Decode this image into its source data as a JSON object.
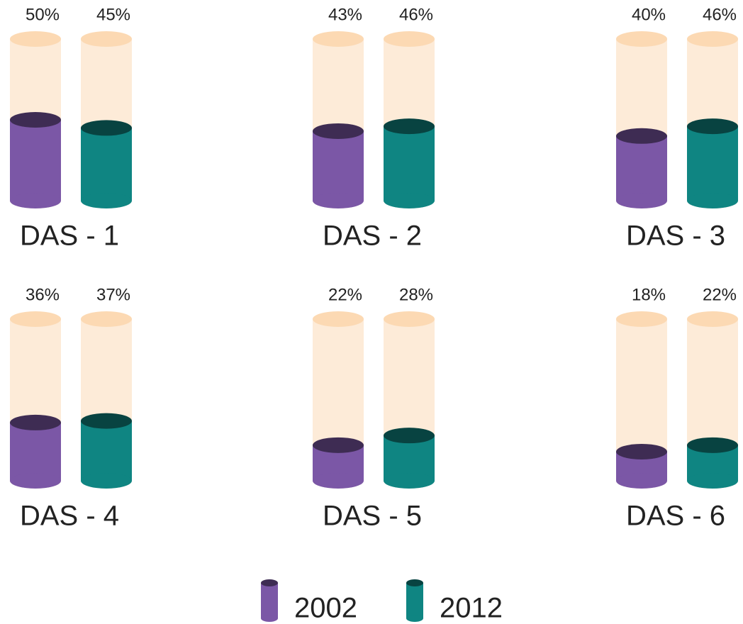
{
  "chart_data": {
    "type": "bar",
    "categories": [
      "DAS - 1",
      "DAS - 2",
      "DAS - 3",
      "DAS - 4",
      "DAS - 5",
      "DAS - 6"
    ],
    "series": [
      {
        "name": "2002",
        "color": "#7b57a6",
        "values": [
          50,
          43,
          40,
          36,
          22,
          18
        ],
        "value_labels": [
          "50%",
          "43%",
          "40%",
          "36%",
          "22%",
          "18%"
        ]
      },
      {
        "name": "2012",
        "color": "#0f8582",
        "values": [
          45,
          46,
          46,
          37,
          28,
          22
        ],
        "value_labels": [
          "45%",
          "46%",
          "46%",
          "37%",
          "28%",
          "22%"
        ]
      }
    ],
    "ylim": [
      0,
      100
    ]
  }
}
